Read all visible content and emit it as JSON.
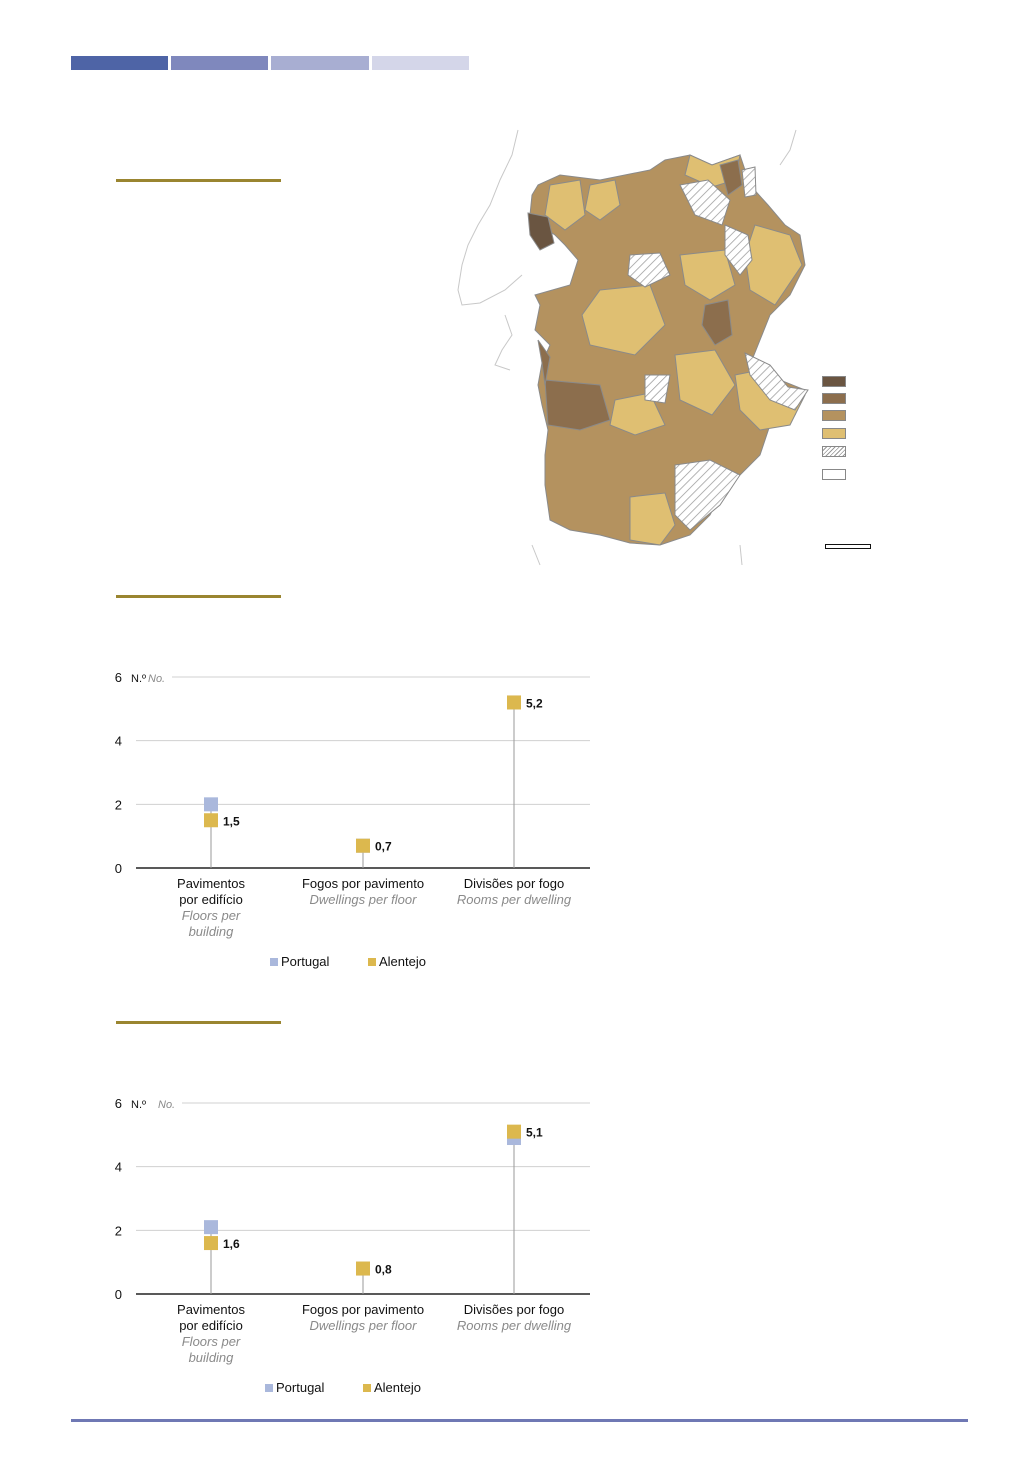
{
  "header": {
    "bar_colors": [
      "#4e64a6",
      "#7f88bd",
      "#a8aed2",
      "#d4d6e9"
    ]
  },
  "colors": {
    "rule": "#9a8530",
    "portugal": "#aab8dc",
    "alentejo": "#dcb84e",
    "gridline": "#d0d0d0",
    "stem": "#9a9a9a"
  },
  "map": {
    "legend_swatches": [
      "#6a5541",
      "#8c6e4d",
      "#b4925f",
      "#dfbf72",
      "hatched",
      "blank"
    ],
    "legend_labels": [
      "",
      "",
      "",
      "",
      "",
      ""
    ]
  },
  "legend": {
    "portugal": "Portugal",
    "alentejo": "Alentejo"
  },
  "chart_data": [
    {
      "type": "scatter",
      "title": "",
      "ylabel": "N.º",
      "ylabel_en": "No.",
      "ylim": [
        0,
        6
      ],
      "yticks": [
        "0",
        "2",
        "4",
        "6"
      ],
      "categories": [
        {
          "pt": [
            "Pavimentos",
            "por edifício"
          ],
          "en": [
            "Floors per",
            "building"
          ]
        },
        {
          "pt": [
            "Fogos por pavimento"
          ],
          "en": [
            "Dwellings per floor"
          ]
        },
        {
          "pt": [
            "Divisões por fogo"
          ],
          "en": [
            "Rooms per dwelling"
          ]
        }
      ],
      "series": [
        {
          "name": "Portugal",
          "values": [
            2.0,
            0.7,
            5.2
          ]
        },
        {
          "name": "Alentejo",
          "values": [
            1.5,
            0.7,
            5.2
          ]
        }
      ],
      "data_labels": [
        "1,5",
        "0,7",
        "5,2"
      ],
      "grid": true,
      "legend_position": "bottom"
    },
    {
      "type": "scatter",
      "title": "",
      "ylabel": "N.º",
      "ylabel_en": "No.",
      "ylim": [
        0,
        6
      ],
      "yticks": [
        "0",
        "2",
        "4",
        "6"
      ],
      "categories": [
        {
          "pt": [
            "Pavimentos",
            "por edifício"
          ],
          "en": [
            "Floors per",
            "building"
          ]
        },
        {
          "pt": [
            "Fogos por pavimento"
          ],
          "en": [
            "Dwellings per floor"
          ]
        },
        {
          "pt": [
            "Divisões por fogo"
          ],
          "en": [
            "Rooms per dwelling"
          ]
        }
      ],
      "series": [
        {
          "name": "Portugal",
          "values": [
            2.1,
            0.8,
            4.9
          ]
        },
        {
          "name": "Alentejo",
          "values": [
            1.6,
            0.8,
            5.1
          ]
        }
      ],
      "data_labels": [
        "1,6",
        "0,8",
        "5,1"
      ],
      "grid": true,
      "legend_position": "bottom"
    }
  ]
}
